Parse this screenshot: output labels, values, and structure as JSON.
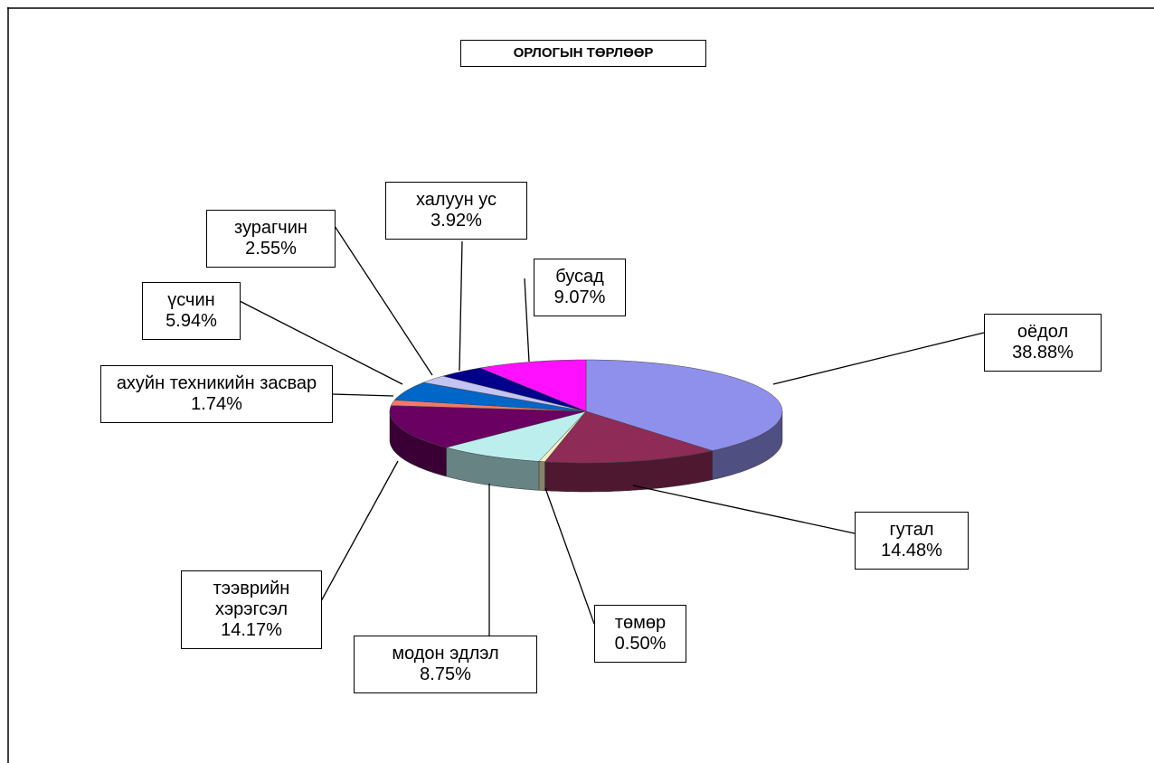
{
  "chart_data": {
    "type": "pie",
    "title": "ОРЛОГЫН ТӨРЛӨӨР",
    "categories": [
      "оёдол",
      "гутал",
      "төмөр",
      "модон эдлэл",
      "тээврийн хэрэгсэл",
      "ахуйн техникийн засвар",
      "үсчин",
      "зурагчин",
      "халуун ус",
      "бусад"
    ],
    "values": [
      38.88,
      14.48,
      0.5,
      8.75,
      14.17,
      1.74,
      5.94,
      2.55,
      3.92,
      9.07
    ],
    "value_labels": [
      "38.88%",
      "14.48%",
      "0.50%",
      "8.75%",
      "14.17%",
      "1.74%",
      "5.94%",
      "2.55%",
      "3.92%",
      "9.07%"
    ],
    "colors": [
      "#8f8fec",
      "#8e2b57",
      "#f2f0c0",
      "#bdeeee",
      "#6a0062",
      "#f07a6a",
      "#0066c8",
      "#c4c4f2",
      "#00008a",
      "#ff10ff"
    ]
  }
}
